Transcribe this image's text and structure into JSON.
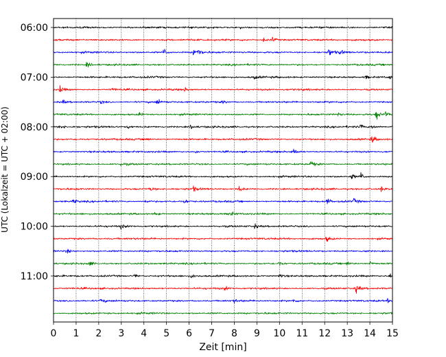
{
  "chart_data": {
    "type": "line",
    "chart_kind": "helicorder",
    "xlabel": "Zeit  [min]",
    "ylabel": "UTC (Lokalzeit = UTC + 02:00)",
    "xlim": [
      0,
      15
    ],
    "x_ticks": [
      0,
      1,
      2,
      3,
      4,
      5,
      6,
      7,
      8,
      9,
      10,
      11,
      12,
      13,
      14,
      15
    ],
    "x_tick_labels": [
      "0",
      "1",
      "2",
      "3",
      "4",
      "5",
      "6",
      "7",
      "8",
      "9",
      "10",
      "11",
      "12",
      "13",
      "14",
      "15"
    ],
    "y_tick_labels": [
      "06:00",
      "07:00",
      "08:00",
      "09:00",
      "10:00",
      "11:00"
    ],
    "trace_interval_minutes": 15,
    "trace_start_times": [
      "06:00",
      "06:15",
      "06:30",
      "06:45",
      "07:00",
      "07:15",
      "07:30",
      "07:45",
      "08:00",
      "08:15",
      "08:30",
      "08:45",
      "09:00",
      "09:15",
      "09:30",
      "09:45",
      "10:00",
      "10:15",
      "10:30",
      "10:45",
      "11:00",
      "11:15",
      "11:30",
      "11:45"
    ],
    "trace_colors": [
      "#000000",
      "#ff0000",
      "#0000ff",
      "#008000"
    ],
    "grid": "vertical dotted at each minute",
    "legend": "none",
    "series": [
      {
        "values": [],
        "events": [
          {
            "x": 8.3,
            "amp": 0.3
          }
        ]
      },
      {
        "values": [],
        "events": [
          {
            "x": 9.3,
            "amp": 0.5
          },
          {
            "x": 9.7,
            "amp": 0.6
          }
        ]
      },
      {
        "values": [],
        "events": [
          {
            "x": 4.9,
            "amp": 0.9
          },
          {
            "x": 6.2,
            "amp": 0.9
          },
          {
            "x": 6.4,
            "amp": 0.8
          },
          {
            "x": 12.2,
            "amp": 1.0
          },
          {
            "x": 12.7,
            "amp": 0.5
          }
        ]
      },
      {
        "values": [],
        "events": [
          {
            "x": 1.5,
            "amp": 0.6
          }
        ]
      },
      {
        "values": [],
        "events": [
          {
            "x": 8.9,
            "amp": 0.4
          },
          {
            "x": 13.8,
            "amp": 0.4
          },
          {
            "x": 14.9,
            "amp": 0.5
          }
        ]
      },
      {
        "values": [],
        "events": [
          {
            "x": 0.3,
            "amp": 0.8
          },
          {
            "x": 2.6,
            "amp": 0.4
          },
          {
            "x": 5.8,
            "amp": 0.4
          }
        ]
      },
      {
        "values": [],
        "events": [
          {
            "x": 0.4,
            "amp": 0.5
          },
          {
            "x": 2.1,
            "amp": 0.4
          },
          {
            "x": 4.6,
            "amp": 0.7
          },
          {
            "x": 7.5,
            "amp": 0.3
          }
        ]
      },
      {
        "values": [],
        "events": [
          {
            "x": 3.8,
            "amp": 0.5
          },
          {
            "x": 12.6,
            "amp": 0.4
          },
          {
            "x": 14.3,
            "amp": 1.1
          },
          {
            "x": 14.7,
            "amp": 0.7
          }
        ]
      },
      {
        "values": [],
        "events": [
          {
            "x": 0.3,
            "amp": 0.5
          },
          {
            "x": 3.3,
            "amp": 0.4
          },
          {
            "x": 6.1,
            "amp": 0.5
          },
          {
            "x": 13.6,
            "amp": 0.5
          },
          {
            "x": 14.1,
            "amp": 0.4
          }
        ]
      },
      {
        "values": [],
        "events": [
          {
            "x": 4.1,
            "amp": 0.4
          },
          {
            "x": 14.1,
            "amp": 0.8
          }
        ]
      },
      {
        "values": [],
        "events": [
          {
            "x": 6.3,
            "amp": 0.4
          },
          {
            "x": 10.6,
            "amp": 0.9
          }
        ]
      },
      {
        "values": [],
        "events": [
          {
            "x": 3.0,
            "amp": 0.4
          },
          {
            "x": 11.4,
            "amp": 0.7
          }
        ]
      },
      {
        "values": [],
        "events": [
          {
            "x": 13.2,
            "amp": 0.6
          },
          {
            "x": 13.6,
            "amp": 0.9
          }
        ]
      },
      {
        "values": [],
        "events": [
          {
            "x": 4.3,
            "amp": 0.5
          },
          {
            "x": 6.2,
            "amp": 0.5
          },
          {
            "x": 8.2,
            "amp": 0.7
          },
          {
            "x": 14.5,
            "amp": 0.5
          }
        ]
      },
      {
        "values": [],
        "events": [
          {
            "x": 0.9,
            "amp": 0.5
          },
          {
            "x": 4.1,
            "amp": 0.5
          },
          {
            "x": 5.8,
            "amp": 0.5
          },
          {
            "x": 12.1,
            "amp": 0.8
          },
          {
            "x": 13.3,
            "amp": 0.5
          }
        ]
      },
      {
        "values": [],
        "events": [
          {
            "x": 4.5,
            "amp": 0.5
          },
          {
            "x": 7.8,
            "amp": 0.6
          }
        ]
      },
      {
        "values": [],
        "events": [
          {
            "x": 3.0,
            "amp": 0.5
          },
          {
            "x": 8.9,
            "amp": 0.5
          }
        ]
      },
      {
        "values": [],
        "events": [
          {
            "x": 12.1,
            "amp": 0.6
          }
        ]
      },
      {
        "values": [],
        "events": [
          {
            "x": 0.6,
            "amp": 0.6
          },
          {
            "x": 13.7,
            "amp": 0.4
          }
        ]
      },
      {
        "values": [],
        "events": [
          {
            "x": 1.6,
            "amp": 0.5
          },
          {
            "x": 10.0,
            "amp": 0.5
          },
          {
            "x": 13.0,
            "amp": 0.5
          },
          {
            "x": 14.0,
            "amp": 0.5
          }
        ]
      },
      {
        "values": [],
        "events": [
          {
            "x": 3.6,
            "amp": 0.4
          },
          {
            "x": 6.1,
            "amp": 0.4
          },
          {
            "x": 10.0,
            "amp": 0.5
          },
          {
            "x": 14.9,
            "amp": 0.5
          }
        ]
      },
      {
        "values": [],
        "events": [
          {
            "x": 7.6,
            "amp": 0.4
          },
          {
            "x": 13.4,
            "amp": 1.0
          }
        ]
      },
      {
        "values": [],
        "events": [
          {
            "x": 2.1,
            "amp": 0.4
          },
          {
            "x": 8.0,
            "amp": 0.4
          },
          {
            "x": 10.6,
            "amp": 0.4
          },
          {
            "x": 14.8,
            "amp": 0.4
          }
        ]
      },
      {
        "values": [],
        "events": []
      }
    ]
  }
}
